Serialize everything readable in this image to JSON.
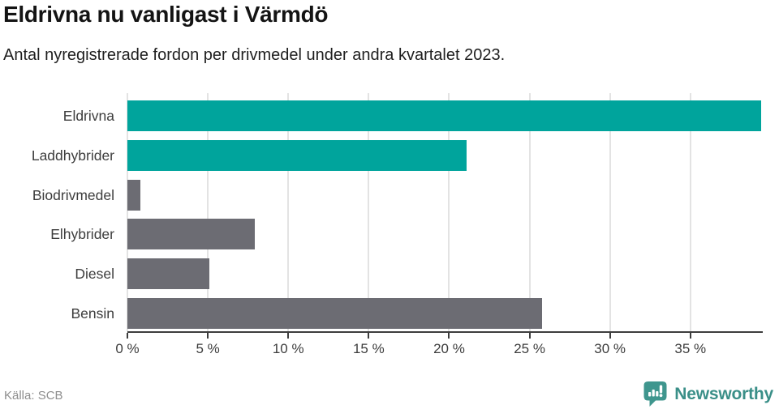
{
  "header": {
    "title": "Eldrivna nu vanligast i Värmdö",
    "subtitle": "Antal nyregistrerade fordon per drivmedel under andra kvartalet 2023."
  },
  "footer": {
    "source": "Källa: SCB",
    "brand_name": "Newsworthy",
    "brand_color": "#3a8f88",
    "brand_icon": "newsworthy-speech-bubble-chart-icon"
  },
  "colors": {
    "highlight_teal": "#00a49c",
    "neutral_gray": "#6c6c73",
    "gridline": "#e3e3e3",
    "axis": "#3d3d3d"
  },
  "chart_data": {
    "type": "bar",
    "orientation": "horizontal",
    "title": "Eldrivna nu vanligast i Värmdö",
    "subtitle": "Antal nyregistrerade fordon per drivmedel under andra kvartalet 2023.",
    "categories": [
      "Eldrivna",
      "Laddhybrider",
      "Biodrivmedel",
      "Elhybrider",
      "Diesel",
      "Bensin"
    ],
    "values": [
      39.4,
      21.1,
      0.8,
      7.9,
      5.1,
      25.8
    ],
    "unit": "%",
    "bar_colors": [
      "#00a49c",
      "#00a49c",
      "#6c6c73",
      "#6c6c73",
      "#6c6c73",
      "#6c6c73"
    ],
    "xlabel": "",
    "ylabel": "",
    "xlim": [
      0,
      39.5
    ],
    "xticks": [
      0,
      5,
      10,
      15,
      20,
      25,
      30,
      35
    ],
    "xtick_labels": [
      "0 %",
      "5 %",
      "10 %",
      "15 %",
      "20 %",
      "25 %",
      "30 %",
      "35 %"
    ],
    "grid": true,
    "legend": "none"
  }
}
